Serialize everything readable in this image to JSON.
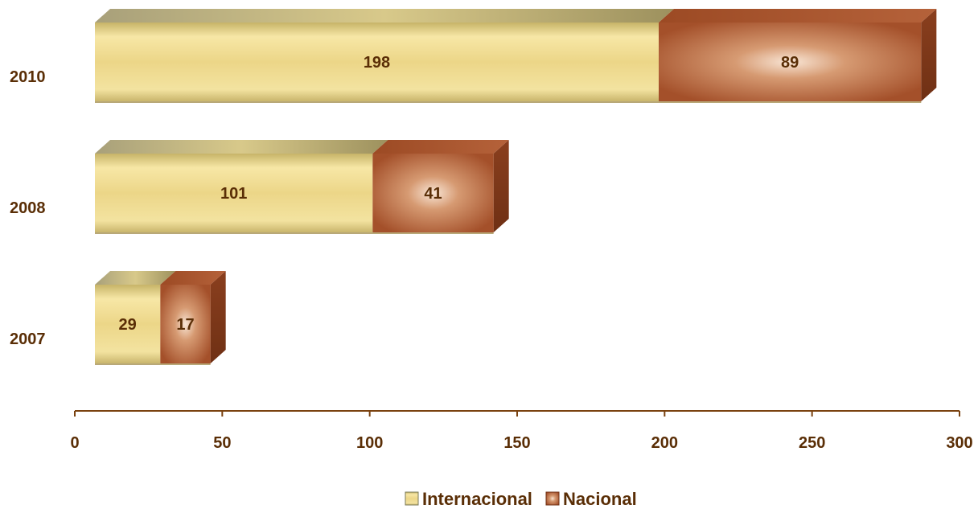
{
  "chart_data": {
    "type": "bar",
    "orientation": "horizontal",
    "stacked": true,
    "categories": [
      "2010",
      "2008",
      "2007"
    ],
    "series": [
      {
        "name": "Internacional",
        "values": [
          198,
          101,
          29
        ],
        "color": "#e6cf7c"
      },
      {
        "name": "Nacional",
        "values": [
          89,
          41,
          17
        ],
        "color": "#a9552a"
      }
    ],
    "xlim": [
      0,
      300
    ],
    "xticks": [
      0,
      50,
      100,
      150,
      200,
      250,
      300
    ],
    "grid": false,
    "legend_position": "bottom",
    "axis_color": "#7a4210",
    "label_color": "#5a2e06"
  }
}
